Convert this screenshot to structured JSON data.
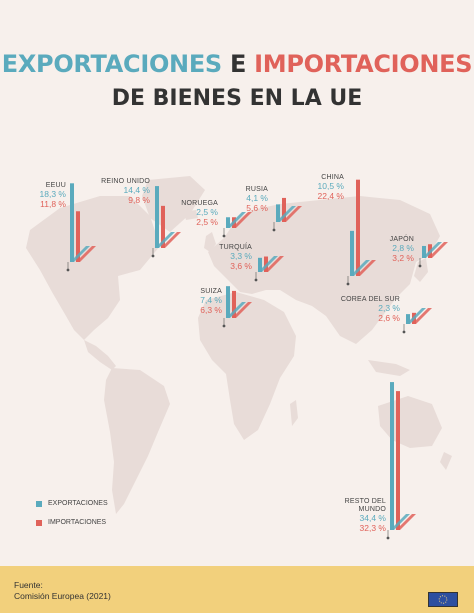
{
  "header": {
    "title_word1": "EXPORTACIONES",
    "title_conj": "E",
    "title_word2": "IMPORTACIONES",
    "title_line2": "DE BIENES EN LA UE"
  },
  "legend": {
    "exports": "EXPORTACIONES",
    "imports": "IMPORTACIONES"
  },
  "colors": {
    "exports": "#5aaabd",
    "imports": "#e0625a",
    "map": "#e8dcd8",
    "background": "#f7f0ec",
    "footer": "#f2d07c"
  },
  "footer": {
    "source_label": "Fuente:",
    "source_text": "Comisión Europea (2021)"
  },
  "flag_icon": "eu-flag-icon",
  "chart_data": {
    "type": "bar",
    "unit": "%",
    "categories": [
      "EEUU",
      "REINO UNIDO",
      "NORUEGA",
      "RUSIA",
      "CHINA",
      "TURQUÍA",
      "SUIZA",
      "JAPÓN",
      "COREA DEL SUR",
      "RESTO DEL MUNDO"
    ],
    "series": [
      {
        "name": "EXPORTACIONES",
        "values": [
          18.3,
          14.4,
          2.5,
          4.1,
          10.5,
          3.3,
          7.4,
          2.8,
          2.3,
          34.4
        ]
      },
      {
        "name": "IMPORTACIONES",
        "values": [
          11.8,
          9.8,
          2.5,
          5.6,
          22.4,
          3.6,
          6.3,
          3.2,
          2.6,
          32.3
        ]
      }
    ],
    "labels": {
      "exports": [
        "18,3 %",
        "14,4 %",
        "2,5 %",
        "4,1 %",
        "10,5 %",
        "3,3 %",
        "7,4 %",
        "2,8 %",
        "2,3 %",
        "34,4 %"
      ],
      "imports": [
        "11,8 %",
        "9,8 %",
        "2,5 %",
        "5,6 %",
        "22,4 %",
        "3,6 %",
        "6,3 %",
        "3,2 %",
        "2,6 %",
        "32,3 %"
      ]
    }
  }
}
